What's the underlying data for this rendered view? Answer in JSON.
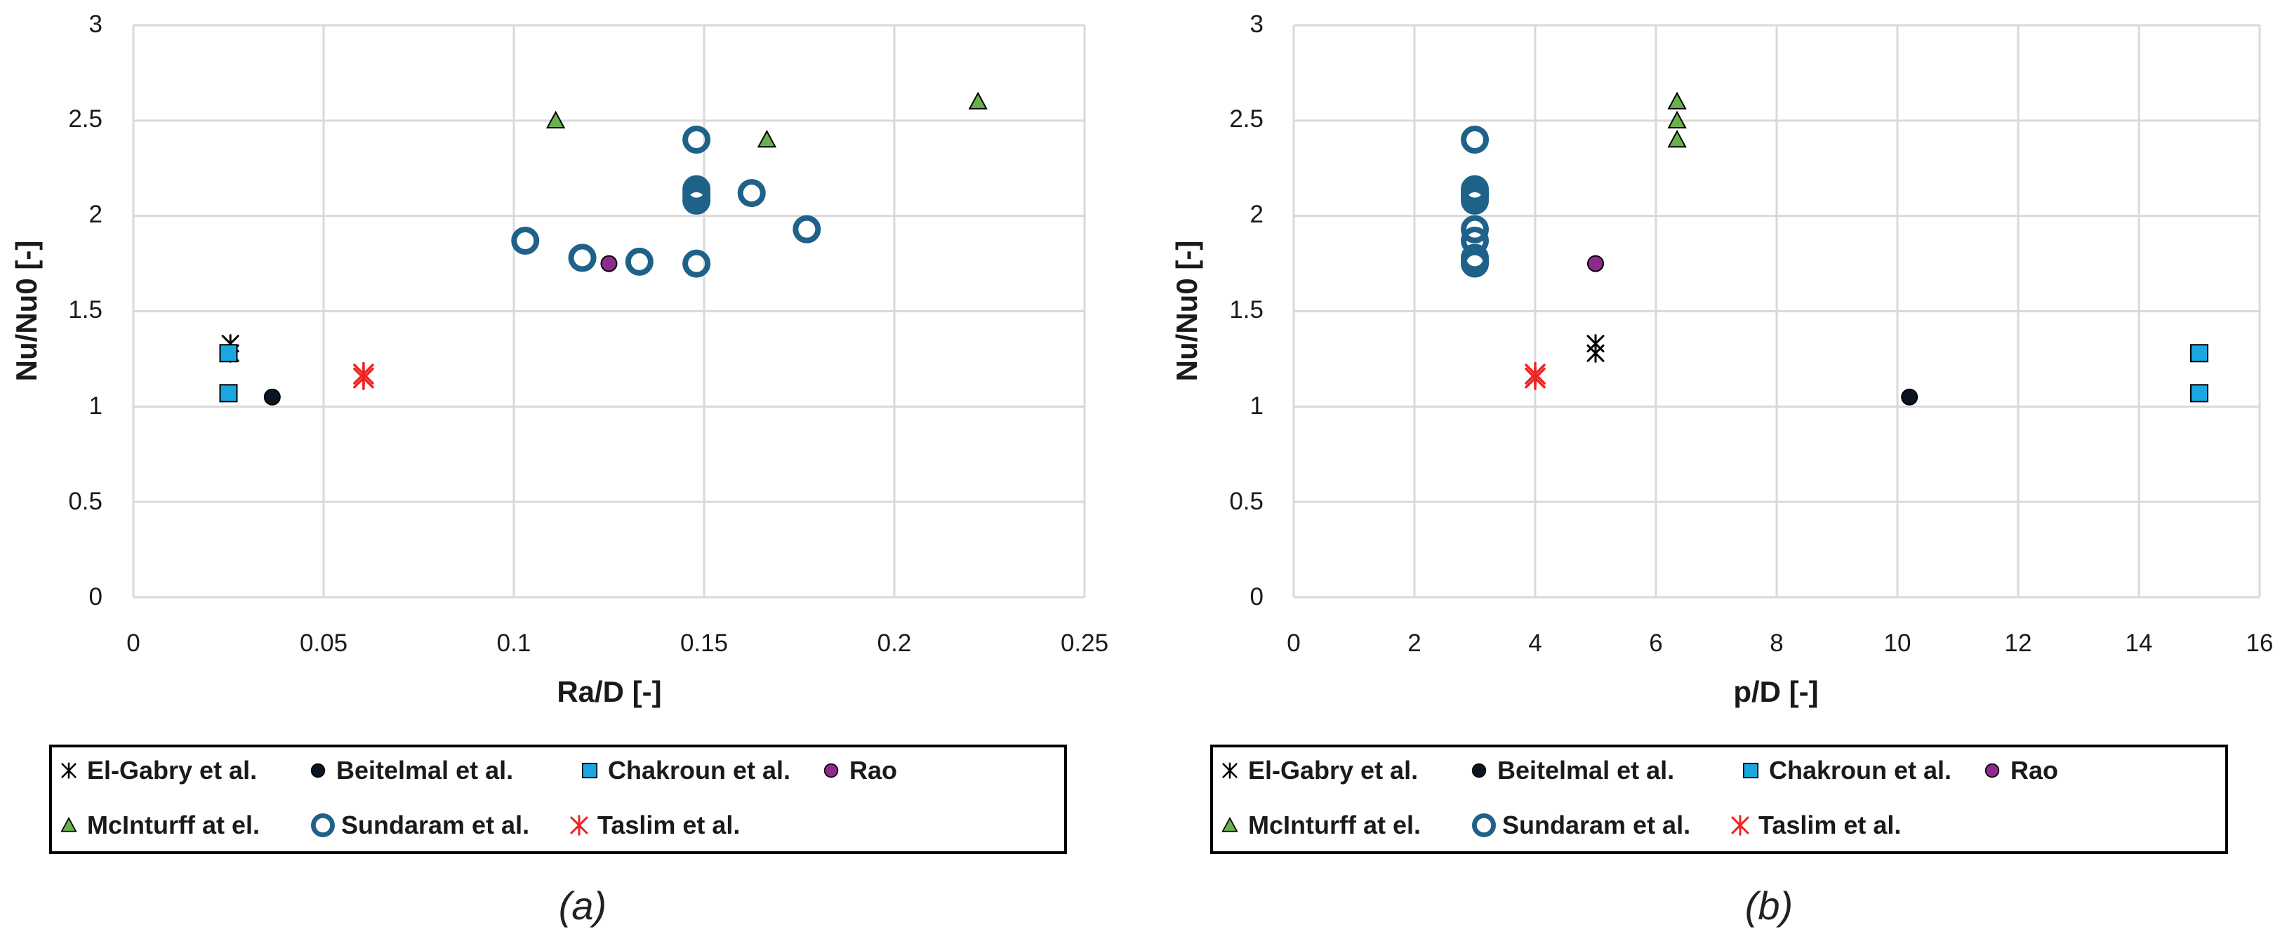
{
  "colors": {
    "El-Gabry et al.": "#000000",
    "Beitelmal et al.": "#0b1522",
    "Chakroun et al.": "#1aa7e1",
    "Rao": "#8e2a8e",
    "McInturff at el.": "#6ab04c",
    "Sundaram et al.": "#1f6289",
    "Taslim et al.": "#ee2222"
  },
  "legend_items": [
    {
      "label": "El-Gabry et al.",
      "marker": "asterisk-icon"
    },
    {
      "label": "Beitelmal et al.",
      "marker": "filled-circle-icon"
    },
    {
      "label": "Chakroun et al.",
      "marker": "filled-square-icon"
    },
    {
      "label": "Rao",
      "marker": "filled-circle-icon"
    },
    {
      "label": "McInturff at el.",
      "marker": "filled-triangle-icon"
    },
    {
      "label": "Sundaram et al.",
      "marker": "open-circle-icon"
    },
    {
      "label": "Taslim et al.",
      "marker": "star-asterisk-icon"
    }
  ],
  "chart_data": [
    {
      "type": "scatter",
      "caption": "(a)",
      "title": "",
      "xlabel": "Ra/D [-]",
      "ylabel": "Nu/Nu0 [-]",
      "xlim": [
        0,
        0.25
      ],
      "ylim": [
        0,
        3
      ],
      "xticks": [
        "0",
        "0.05",
        "0.1",
        "0.15",
        "0.2",
        "0.25"
      ],
      "yticks": [
        "0",
        "0.5",
        "1",
        "1.5",
        "2",
        "2.5",
        "3"
      ],
      "grid": true,
      "legend_position": "bottom",
      "series": [
        {
          "name": "El-Gabry et al.",
          "x": [
            0.0255,
            0.0255
          ],
          "y": [
            1.33,
            1.28
          ]
        },
        {
          "name": "Beitelmal et al.",
          "x": [
            0.0365
          ],
          "y": [
            1.05
          ]
        },
        {
          "name": "Chakroun et al.",
          "x": [
            0.025,
            0.025
          ],
          "y": [
            1.28,
            1.07
          ]
        },
        {
          "name": "Rao",
          "x": [
            0.125
          ],
          "y": [
            1.75
          ]
        },
        {
          "name": "McInturff at el.",
          "x": [
            0.111,
            0.1665,
            0.222
          ],
          "y": [
            2.5,
            2.4,
            2.6
          ]
        },
        {
          "name": "Sundaram et al.",
          "x": [
            0.103,
            0.118,
            0.133,
            0.148,
            0.148,
            0.148,
            0.148,
            0.148,
            0.148,
            0.1625,
            0.177
          ],
          "y": [
            1.87,
            1.78,
            1.76,
            1.75,
            2.08,
            2.1,
            2.12,
            2.14,
            2.4,
            2.12,
            1.93
          ]
        },
        {
          "name": "Taslim et al.",
          "x": [
            0.0605,
            0.0605
          ],
          "y": [
            1.17,
            1.15
          ]
        }
      ]
    },
    {
      "type": "scatter",
      "caption": "(b)",
      "title": "",
      "xlabel": "p/D [-]",
      "ylabel": "Nu/Nu0 [-]",
      "xlim": [
        0,
        16
      ],
      "ylim": [
        0,
        3
      ],
      "xticks": [
        "0",
        "2",
        "4",
        "6",
        "8",
        "10",
        "12",
        "14",
        "16"
      ],
      "yticks": [
        "0",
        "0.5",
        "1",
        "1.5",
        "2",
        "2.5",
        "3"
      ],
      "grid": true,
      "legend_position": "bottom",
      "series": [
        {
          "name": "El-Gabry et al.",
          "x": [
            5,
            5
          ],
          "y": [
            1.33,
            1.28
          ]
        },
        {
          "name": "Beitelmal et al.",
          "x": [
            10.2
          ],
          "y": [
            1.05
          ]
        },
        {
          "name": "Chakroun et al.",
          "x": [
            15,
            15
          ],
          "y": [
            1.28,
            1.07
          ]
        },
        {
          "name": "Rao",
          "x": [
            5
          ],
          "y": [
            1.75
          ]
        },
        {
          "name": "McInturff at el.",
          "x": [
            6.35,
            6.35,
            6.35
          ],
          "y": [
            2.6,
            2.5,
            2.4
          ]
        },
        {
          "name": "Sundaram et al.",
          "x": [
            3,
            3,
            3,
            3,
            3,
            3,
            3,
            3,
            3,
            3,
            3
          ],
          "y": [
            1.75,
            1.78,
            1.87,
            1.93,
            2.08,
            2.1,
            2.12,
            2.14,
            2.4,
            1.76,
            2.12
          ]
        },
        {
          "name": "Taslim et al.",
          "x": [
            4,
            4
          ],
          "y": [
            1.17,
            1.15
          ]
        }
      ]
    }
  ]
}
